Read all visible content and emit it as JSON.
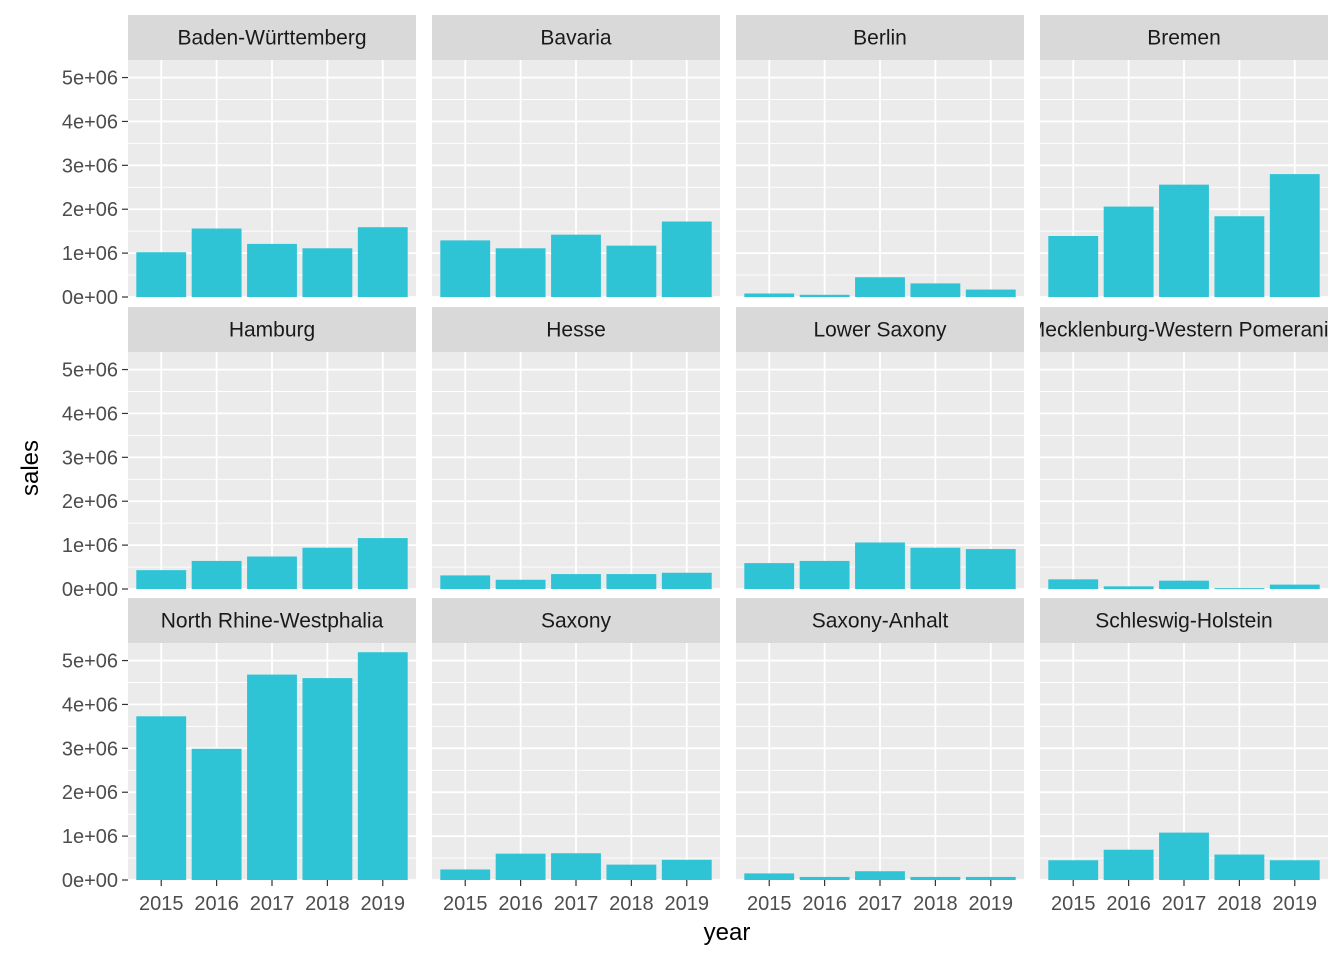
{
  "chart_data": {
    "type": "bar",
    "layout": "facet-grid",
    "xlabel": "year",
    "ylabel": "sales",
    "categories": [
      "2015",
      "2016",
      "2017",
      "2018",
      "2019"
    ],
    "ylim": [
      0,
      5400000
    ],
    "y_ticks": [
      0,
      1000000,
      2000000,
      3000000,
      4000000,
      5000000
    ],
    "y_tick_labels": [
      "0e+00",
      "1e+06",
      "2e+06",
      "3e+06",
      "4e+06",
      "5e+06"
    ],
    "grid": true,
    "bar_color": "#2ec4d6",
    "panel_background": "#ebebeb",
    "strip_background": "#d9d9d9",
    "facets": [
      {
        "name": "Baden-Württemberg",
        "values": [
          1020000,
          1560000,
          1210000,
          1110000,
          1590000
        ]
      },
      {
        "name": "Bavaria",
        "values": [
          1290000,
          1110000,
          1420000,
          1170000,
          1720000
        ]
      },
      {
        "name": "Berlin",
        "values": [
          80000,
          50000,
          450000,
          310000,
          170000
        ]
      },
      {
        "name": "Bremen",
        "values": [
          1390000,
          2060000,
          2560000,
          1840000,
          2800000
        ]
      },
      {
        "name": "Hamburg",
        "values": [
          430000,
          640000,
          740000,
          940000,
          1160000
        ]
      },
      {
        "name": "Hesse",
        "values": [
          310000,
          210000,
          340000,
          340000,
          370000
        ]
      },
      {
        "name": "Lower Saxony",
        "values": [
          590000,
          640000,
          1060000,
          940000,
          910000
        ]
      },
      {
        "name": "Mecklenburg-Western Pomerania",
        "values": [
          220000,
          60000,
          190000,
          20000,
          100000
        ]
      },
      {
        "name": "North Rhine-Westphalia",
        "values": [
          3730000,
          2990000,
          4680000,
          4600000,
          5190000
        ]
      },
      {
        "name": "Saxony",
        "values": [
          240000,
          600000,
          610000,
          350000,
          460000
        ]
      },
      {
        "name": "Saxony-Anhalt",
        "values": [
          150000,
          70000,
          200000,
          70000,
          70000
        ]
      },
      {
        "name": "Schleswig-Holstein",
        "values": [
          450000,
          690000,
          1080000,
          580000,
          450000
        ]
      }
    ]
  }
}
